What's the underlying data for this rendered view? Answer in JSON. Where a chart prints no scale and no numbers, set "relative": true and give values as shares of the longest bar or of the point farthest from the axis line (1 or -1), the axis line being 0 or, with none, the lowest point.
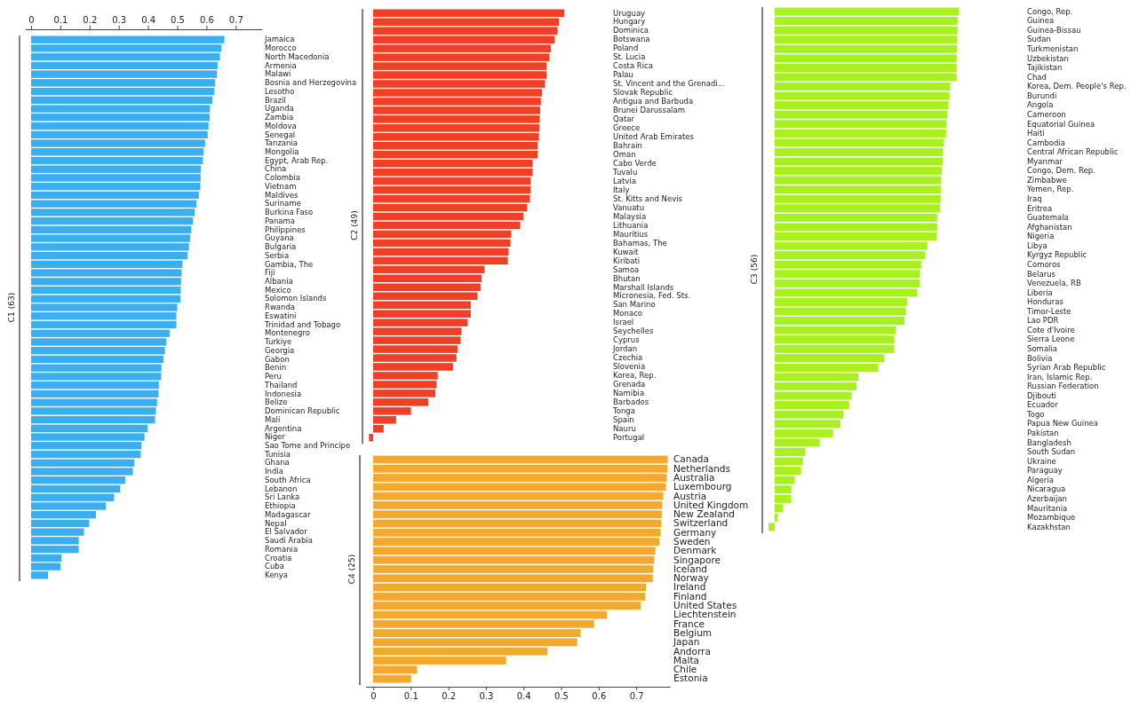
{
  "chart_data": [
    {
      "type": "bar",
      "orientation": "horizontal",
      "ylabel": "C1 (63)",
      "color": "#3aaeef",
      "xlim": [
        -0.02,
        0.79
      ],
      "xticks": [
        0,
        0.1,
        0.2,
        0.3,
        0.4,
        0.5,
        0.6,
        0.7
      ],
      "categories": [
        "Jamaica",
        "Morocco",
        "North Macedonia",
        "Armenia",
        "Malawi",
        "Bosnia and Herzegovina",
        "Lesotho",
        "Brazil",
        "Uganda",
        "Zambia",
        "Moldova",
        "Senegal",
        "Tanzania",
        "Mongolia",
        "Egypt, Arab Rep.",
        "China",
        "Colombia",
        "Vietnam",
        "Maldives",
        "Suriname",
        "Burkina Faso",
        "Panama",
        "Philippines",
        "Guyana",
        "Bulgaria",
        "Serbia",
        "Gambia, The",
        "Fiji",
        "Albania",
        "Mexico",
        "Solomon Islands",
        "Rwanda",
        "Eswatini",
        "Trinidad and Tobago",
        "Montenegro",
        "Turkiye",
        "Georgia",
        "Gabon",
        "Benin",
        "Peru",
        "Thailand",
        "Indonesia",
        "Belize",
        "Dominican Republic",
        "Mali",
        "Argentina",
        "Niger",
        "Sao Tome and Principe",
        "Tunisia",
        "Ghana",
        "India",
        "South Africa",
        "Lebanon",
        "Sri Lanka",
        "Ethiopia",
        "Madagascar",
        "Nepal",
        "El Salvador",
        "Saudi Arabia",
        "Romania",
        "Croatia",
        "Cuba",
        "Kenya"
      ],
      "values": [
        0.661,
        0.651,
        0.646,
        0.638,
        0.636,
        0.63,
        0.627,
        0.62,
        0.612,
        0.611,
        0.607,
        0.604,
        0.595,
        0.59,
        0.588,
        0.581,
        0.58,
        0.579,
        0.574,
        0.566,
        0.56,
        0.554,
        0.548,
        0.544,
        0.54,
        0.535,
        0.518,
        0.515,
        0.513,
        0.512,
        0.511,
        0.5,
        0.497,
        0.497,
        0.474,
        0.462,
        0.458,
        0.453,
        0.446,
        0.445,
        0.437,
        0.436,
        0.431,
        0.427,
        0.424,
        0.399,
        0.388,
        0.377,
        0.375,
        0.353,
        0.348,
        0.322,
        0.305,
        0.284,
        0.256,
        0.222,
        0.199,
        0.181,
        0.163,
        0.163,
        0.104,
        0.101,
        0.058
      ]
    },
    {
      "type": "bar",
      "orientation": "horizontal",
      "ylabel": "C2 (49)",
      "color": "#ef3f27",
      "relative": true,
      "categories": [
        "Uruguay",
        "Hungary",
        "Dominica",
        "Botswana",
        "Poland",
        "St. Lucia",
        "Costa Rica",
        "Palau",
        "St. Vincent and the Grenadi...",
        "Slovak Republic",
        "Antigua and Barbuda",
        "Brunei Darussalam",
        "Qatar",
        "Greece",
        "United Arab Emirates",
        "Bahrain",
        "Oman",
        "Cabo Verde",
        "Tuvalu",
        "Latvia",
        "Italy",
        "St. Kitts and Nevis",
        "Vanuatu",
        "Malaysia",
        "Lithuania",
        "Mauritius",
        "Bahamas, The",
        "Kuwait",
        "Kiribati",
        "Samoa",
        "Bhutan",
        "Marshall Islands",
        "Micronesia, Fed. Sts.",
        "San Marino",
        "Monaco",
        "Israel",
        "Seychelles",
        "Cyprus",
        "Jordan",
        "Czechia",
        "Slovenia",
        "Korea, Rep.",
        "Grenada",
        "Namibia",
        "Barbados",
        "Tonga",
        "Spain",
        "Nauru",
        "Portugal"
      ],
      "values": [
        1,
        0.973,
        0.965,
        0.951,
        0.931,
        0.923,
        0.908,
        0.908,
        0.9,
        0.884,
        0.878,
        0.874,
        0.872,
        0.87,
        0.868,
        0.861,
        0.861,
        0.835,
        0.835,
        0.825,
        0.825,
        0.821,
        0.806,
        0.786,
        0.77,
        0.723,
        0.719,
        0.709,
        0.705,
        0.583,
        0.568,
        0.562,
        0.546,
        0.511,
        0.511,
        0.495,
        0.462,
        0.458,
        0.442,
        0.436,
        0.418,
        0.338,
        0.332,
        0.326,
        0.289,
        0.198,
        0.12,
        0.055,
        -0.022
      ]
    },
    {
      "type": "bar",
      "orientation": "horizontal",
      "ylabel": "C3 (56)",
      "color": "#a8f020",
      "relative": true,
      "categories": [
        "Congo, Rep.",
        "Guinea",
        "Guinea-Bissau",
        "Sudan",
        "Turkmenistan",
        "Uzbekistan",
        "Tajikistan",
        "Chad",
        "Korea, Dem. People's Rep.",
        "Burundi",
        "Angola",
        "Cameroon",
        "Equatorial Guinea",
        "Haiti",
        "Cambodia",
        "Central African Republic",
        "Myanmar",
        "Congo, Dem. Rep.",
        "Zimbabwe",
        "Yemen, Rep.",
        "Iraq",
        "Eritrea",
        "Guatemala",
        "Afghanistan",
        "Nigeria",
        "Libya",
        "Kyrgyz Republic",
        "Comoros",
        "Belarus",
        "Venezuela, RB",
        "Liberia",
        "Honduras",
        "Timor-Leste",
        "Lao PDR",
        "Cote d'Ivoire",
        "Sierra Leone",
        "Somalia",
        "Bolivia",
        "Syrian Arab Republic",
        "Iran, Islamic Rep.",
        "Russian Federation",
        "Djibouti",
        "Ecuador",
        "Togo",
        "Papua New Guinea",
        "Pakistan",
        "Bangladesh",
        "South Sudan",
        "Ukraine",
        "Paraguay",
        "Algeria",
        "Nicaragua",
        "Azerbaijan",
        "Mauritania",
        "Mozambique",
        "Kazakhstan"
      ],
      "values": [
        1,
        0.994,
        0.994,
        0.992,
        0.99,
        0.989,
        0.989,
        0.989,
        0.955,
        0.95,
        0.945,
        0.939,
        0.934,
        0.932,
        0.92,
        0.915,
        0.913,
        0.908,
        0.905,
        0.904,
        0.902,
        0.9,
        0.883,
        0.883,
        0.881,
        0.83,
        0.818,
        0.796,
        0.789,
        0.789,
        0.775,
        0.719,
        0.714,
        0.706,
        0.659,
        0.65,
        0.65,
        0.596,
        0.563,
        0.455,
        0.445,
        0.418,
        0.405,
        0.373,
        0.357,
        0.317,
        0.244,
        0.167,
        0.153,
        0.143,
        0.109,
        0.09,
        0.09,
        0.045,
        0.016,
        -0.034
      ]
    },
    {
      "type": "bar",
      "orientation": "horizontal",
      "ylabel": "C4 (25)",
      "color": "#f2a92e",
      "xlim": [
        -0.02,
        0.79
      ],
      "xticks": [
        0,
        0.1,
        0.2,
        0.3,
        0.4,
        0.5,
        0.6,
        0.7
      ],
      "categories": [
        "Canada",
        "Netherlands",
        "Australia",
        "Luxembourg",
        "Austria",
        "United Kingdom",
        "New Zealand",
        "Switzerland",
        "Germany",
        "Sweden",
        "Denmark",
        "Singapore",
        "Iceland",
        "Norway",
        "Ireland",
        "Finland",
        "United States",
        "Liechtenstein",
        "France",
        "Belgium",
        "Japan",
        "Andorra",
        "Malta",
        "Chile",
        "Estonia"
      ],
      "values": [
        0.784,
        0.783,
        0.781,
        0.779,
        0.772,
        0.769,
        0.768,
        0.767,
        0.765,
        0.762,
        0.751,
        0.748,
        0.745,
        0.744,
        0.726,
        0.724,
        0.712,
        0.622,
        0.588,
        0.552,
        0.543,
        0.464,
        0.354,
        0.117,
        0.101
      ]
    }
  ]
}
